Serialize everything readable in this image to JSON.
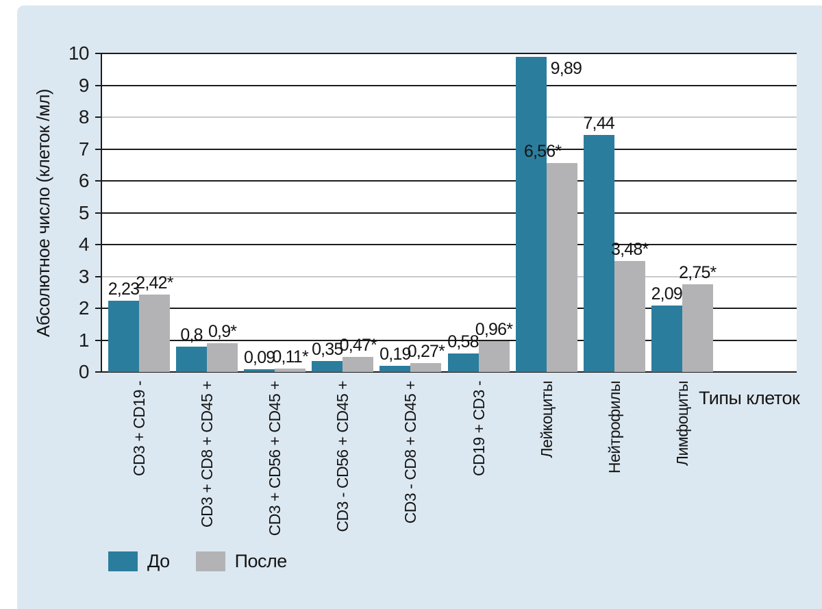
{
  "chart_data": {
    "type": "bar",
    "title": "",
    "categories": [
      "CD3 + CD19 -",
      "CD3 + CD8 + CD45 +",
      "CD3 + CD56 + CD45 +",
      "CD3 - CD56 + CD45 +",
      "CD3 - CD8 + CD45 +",
      "CD19 + CD3 -",
      "Лейкоциты",
      "Нейтрофилы",
      "Лимфоциты"
    ],
    "series": [
      {
        "name": "До",
        "color": "#2b7d9d",
        "values": [
          2.23,
          0.8,
          0.09,
          0.35,
          0.19,
          0.58,
          9.89,
          7.44,
          2.09
        ],
        "labels": [
          "2,23",
          "0,8",
          "0,09",
          "0,35",
          "0,19",
          "0,58",
          "9,89",
          "7,44",
          "2,09"
        ]
      },
      {
        "name": "После",
        "color": "#b3b3b5",
        "values": [
          2.42,
          0.9,
          0.11,
          0.47,
          0.27,
          0.96,
          6.56,
          3.48,
          2.75
        ],
        "labels": [
          "2,42*",
          "0,9*",
          "0,11*",
          "0,47*",
          "0,27*",
          "0,96*",
          "6,56*",
          "3,48*",
          "2,75*"
        ]
      }
    ],
    "xlabel": "Типы клеток",
    "ylabel": "Абсолютное число (клеток /мл)",
    "ylim": [
      0,
      10
    ],
    "yticks": [
      0,
      1,
      2,
      3,
      4,
      5,
      6,
      7,
      8,
      9,
      10
    ],
    "light_gridlines_at": [
      3,
      8
    ],
    "grid": "horizontal",
    "legend_position": "bottom-left",
    "panel_background": "#dce8f1",
    "plot_background": "#ffffff"
  }
}
